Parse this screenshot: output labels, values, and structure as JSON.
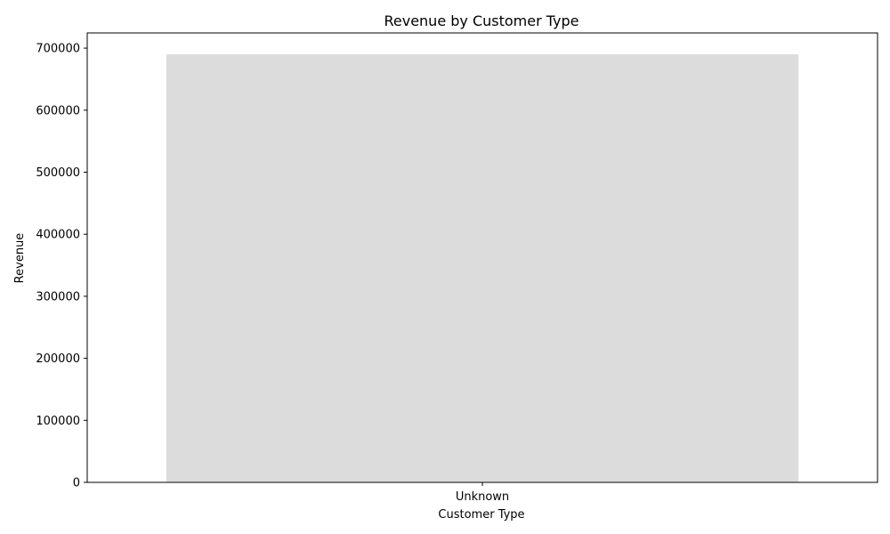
{
  "chart_data": {
    "type": "bar",
    "title": "Revenue by Customer Type",
    "xlabel": "Customer Type",
    "ylabel": "Revenue",
    "categories": [
      "Unknown"
    ],
    "values": [
      690000
    ],
    "ylim": [
      0,
      724500
    ],
    "yticks": [
      0,
      100000,
      200000,
      300000,
      400000,
      500000,
      600000,
      700000
    ],
    "ytick_labels": [
      "0",
      "100000",
      "200000",
      "300000",
      "400000",
      "500000",
      "600000",
      "700000"
    ],
    "grid": false,
    "legend": "none",
    "colors": {
      "bar": "#dcdcdc",
      "axes": "#000000",
      "background": "#ffffff"
    }
  }
}
